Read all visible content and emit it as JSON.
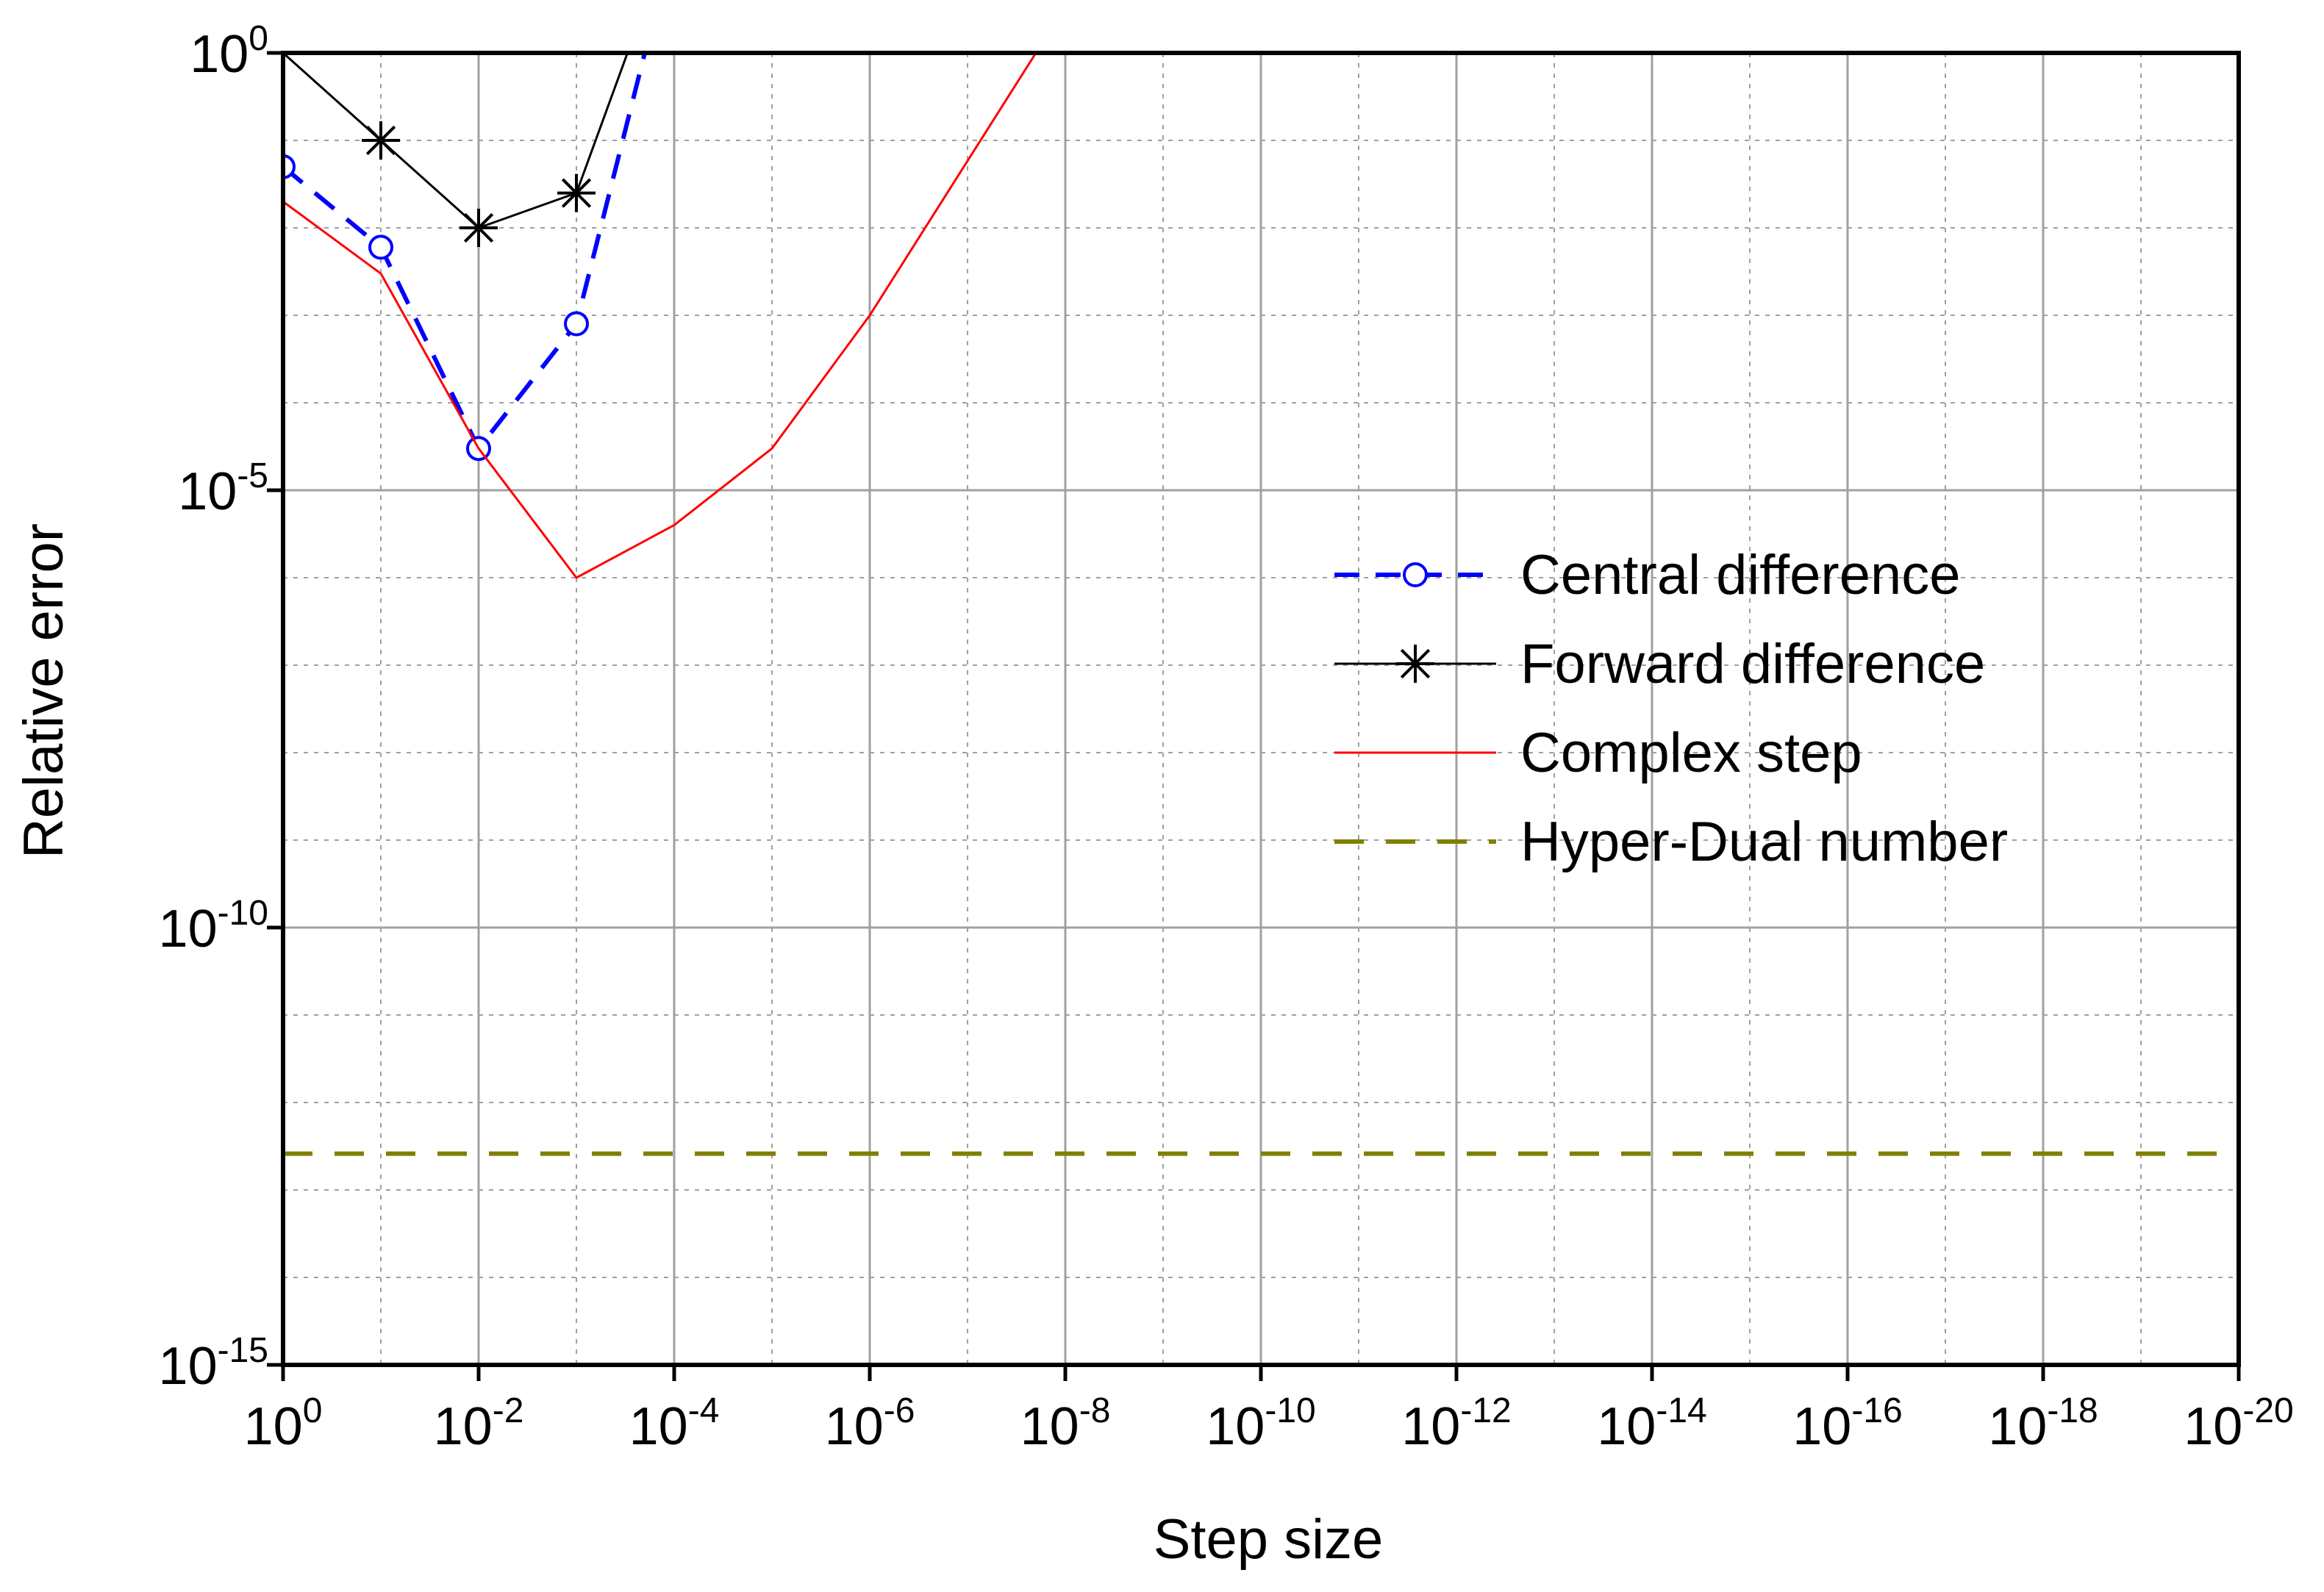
{
  "chart_data": {
    "type": "line",
    "title": "",
    "xlabel": "Step size",
    "ylabel": "Relative error",
    "x_scale": "log",
    "x_axis_reversed": true,
    "y_scale": "log",
    "xlim": [
      1,
      1e-20
    ],
    "ylim": [
      1e-15,
      1
    ],
    "x_ticks": [
      {
        "base": "10",
        "exp": "0"
      },
      {
        "base": "10",
        "exp": "-2"
      },
      {
        "base": "10",
        "exp": "-4"
      },
      {
        "base": "10",
        "exp": "-6"
      },
      {
        "base": "10",
        "exp": "-8"
      },
      {
        "base": "10",
        "exp": "-10"
      },
      {
        "base": "10",
        "exp": "-12"
      },
      {
        "base": "10",
        "exp": "-14"
      },
      {
        "base": "10",
        "exp": "-16"
      },
      {
        "base": "10",
        "exp": "-18"
      },
      {
        "base": "10",
        "exp": "-20"
      }
    ],
    "y_ticks": [
      {
        "base": "10",
        "exp": "0"
      },
      {
        "base": "10",
        "exp": "-5"
      },
      {
        "base": "10",
        "exp": "-10"
      },
      {
        "base": "10",
        "exp": "-15"
      }
    ],
    "grid": true,
    "legend_position": "right-middle",
    "series": [
      {
        "name": "Central difference",
        "color": "#0000ff",
        "line_style": "dashed",
        "marker": "circle",
        "points": [
          [
            1,
            0.05
          ],
          [
            0.1,
            0.006
          ],
          [
            0.01,
            3e-05
          ],
          [
            0.001,
            0.0008
          ],
          [
            0.0002,
            1
          ]
        ]
      },
      {
        "name": "Forward difference",
        "color": "#000000",
        "line_style": "solid",
        "marker": "asterisk",
        "points": [
          [
            1,
            1
          ],
          [
            0.1,
            0.1
          ],
          [
            0.01,
            0.01
          ],
          [
            0.001,
            0.025
          ],
          [
            0.0003,
            1
          ]
        ]
      },
      {
        "name": "Complex step",
        "color": "#ff0000",
        "line_style": "solid",
        "marker": "none",
        "points": [
          [
            1,
            0.02
          ],
          [
            0.1,
            0.003
          ],
          [
            0.01,
            3e-05
          ],
          [
            0.001,
            1e-06
          ],
          [
            0.0001,
            4e-06
          ],
          [
            1e-05,
            3e-05
          ],
          [
            1e-06,
            0.001
          ],
          [
            2e-08,
            1
          ]
        ]
      },
      {
        "name": "Hyper-Dual number",
        "color": "#808000",
        "line_style": "dashed",
        "marker": "none",
        "points": [
          [
            1,
            2.6e-13
          ],
          [
            1e-20,
            2.6e-13
          ]
        ]
      }
    ]
  }
}
